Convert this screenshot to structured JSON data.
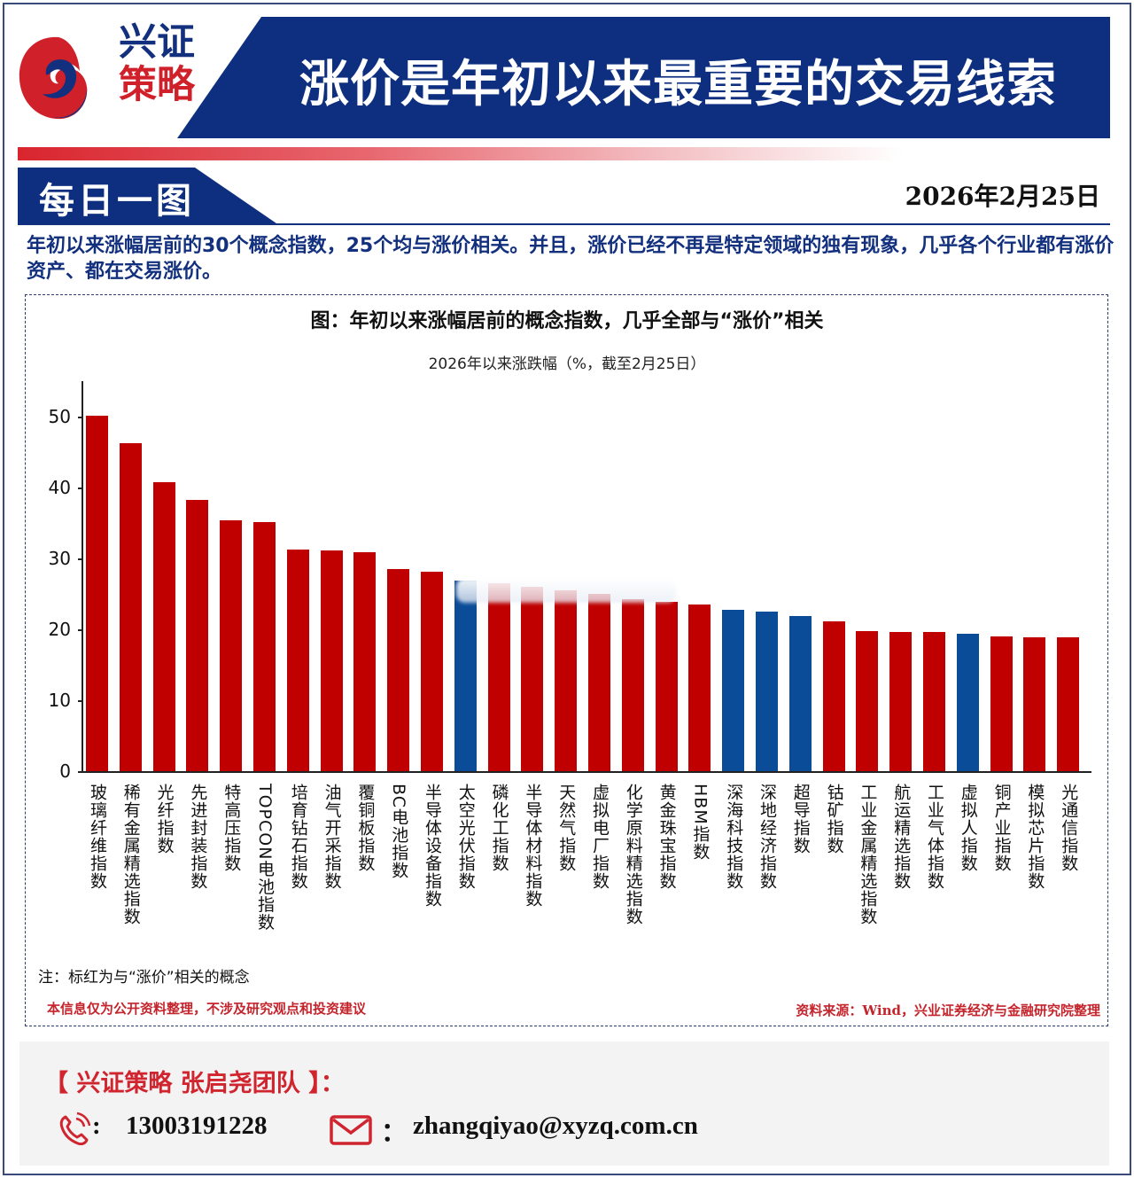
{
  "header": {
    "logo_line1": "兴证",
    "logo_line2": "策略",
    "title": "涨价是年初以来最重要的交易线索",
    "section_label": "每日一图",
    "date": "2026年2月25日"
  },
  "summary": "年初以来涨幅居前的30个概念指数，25个均与涨价相关。并且，涨价已经不再是特定领域的独有现象，几乎各个行业都有涨价资产、都在交易涨价。",
  "colors": {
    "brand_blue": "#0e2f80",
    "brand_red": "#d0202a",
    "bar_red": "#c00000",
    "bar_blue": "#0a4c98"
  },
  "chart_data": {
    "type": "bar",
    "title": "图：年初以来涨幅居前的概念指数，几乎全部与“涨价”相关",
    "subtitle": "2026年以来涨跌幅（%，截至2月25日）",
    "xlabel": "",
    "ylabel": "",
    "ylim": [
      0,
      55
    ],
    "yticks": [
      0,
      10,
      20,
      30,
      40,
      50
    ],
    "grid": false,
    "legend": "none",
    "categories": [
      "玻璃纤维指数",
      "稀有金属精选指数",
      "光纤指数",
      "先进封装指数",
      "特高压指数",
      "TOPCON电池指数",
      "培育钻石指数",
      "油气开采指数",
      "覆铜板指数",
      "BC电池指数",
      "半导体设备指数",
      "太空光伏指数",
      "磷化工指数",
      "半导体材料指数",
      "天然气指数",
      "虚拟电厂指数",
      "化学原料精选指数",
      "黄金珠宝指数",
      "HBM指数",
      "深海科技指数",
      "深地经济指数",
      "超导指数",
      "钴矿指数",
      "工业金属精选指数",
      "航运精选指数",
      "工业气体指数",
      "虚拟人指数",
      "铜产业指数",
      "模拟芯片指数",
      "光通信指数"
    ],
    "values": [
      50.1,
      46.3,
      40.8,
      38.3,
      35.4,
      35.1,
      31.3,
      31.1,
      30.9,
      28.5,
      28.1,
      26.9,
      26.5,
      26.0,
      25.5,
      25.0,
      24.3,
      23.9,
      23.5,
      22.8,
      22.5,
      21.9,
      21.1,
      19.8,
      19.6,
      19.6,
      19.4,
      19.0,
      18.9,
      18.9
    ],
    "price_related": [
      true,
      true,
      true,
      true,
      true,
      true,
      true,
      true,
      true,
      true,
      true,
      false,
      true,
      true,
      true,
      true,
      true,
      true,
      true,
      false,
      false,
      false,
      true,
      true,
      true,
      true,
      false,
      true,
      true,
      true
    ],
    "note": "注：标红为与“涨价”相关的概念"
  },
  "chart_footer": {
    "disclaimer": "本信息仅为公开资料整理，不涉及研究观点和投资建议",
    "source": "资料来源：Wind，兴业证券经济与金融研究院整理"
  },
  "footer": {
    "team": "【 兴证策略 张启尧团队 】：",
    "phone_sep": ":",
    "phone": "13003191228",
    "email_sep": "：",
    "email": "zhangqiyao@xyzq.com.cn"
  }
}
